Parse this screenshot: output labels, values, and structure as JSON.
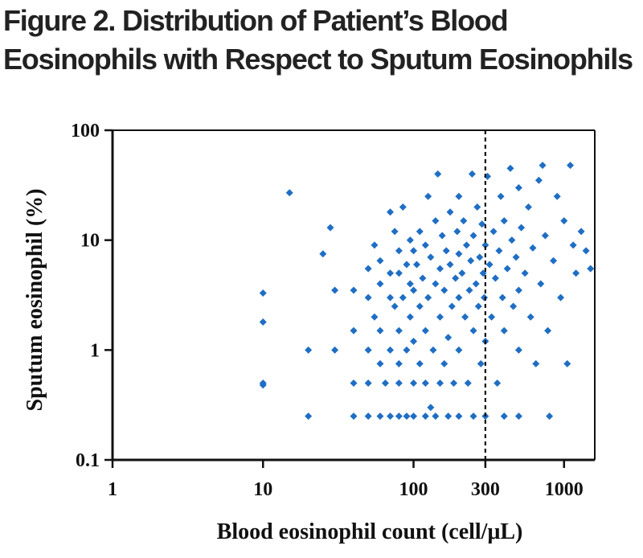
{
  "title": {
    "line1": "Figure 2. Distribution of Patient’s Blood",
    "line2": "Eosinophils with Respect to Sputum Eosinophils"
  },
  "colors": {
    "points": "#1f6ec4",
    "axes": "#111111",
    "reference_line": "#111111"
  },
  "chart_data": {
    "type": "scatter",
    "xlabel": "Blood eosinophil count (cell/μL)",
    "ylabel": "Sputum eosinophil (%)",
    "x_scale": "log",
    "y_scale": "log",
    "xlim": [
      1,
      1600
    ],
    "ylim": [
      0.1,
      100
    ],
    "x_ticks": [
      {
        "value": 1,
        "label": "1"
      },
      {
        "value": 10,
        "label": "10"
      },
      {
        "value": 100,
        "label": "100"
      },
      {
        "value": 300,
        "label": "300"
      },
      {
        "value": 1000,
        "label": "1000"
      }
    ],
    "y_ticks": [
      {
        "value": 0.1,
        "label": "0.1"
      },
      {
        "value": 1,
        "label": "1"
      },
      {
        "value": 10,
        "label": "10"
      },
      {
        "value": 100,
        "label": "100"
      }
    ],
    "grid": false,
    "reference_line": {
      "axis": "x",
      "value": 300,
      "style": "dashed"
    },
    "marker": "diamond",
    "points": [
      [
        10,
        3.3
      ],
      [
        10,
        1.8
      ],
      [
        10,
        0.5
      ],
      [
        10,
        0.48
      ],
      [
        15,
        27
      ],
      [
        20,
        1.0
      ],
      [
        20,
        0.25
      ],
      [
        25,
        7.5
      ],
      [
        28,
        13
      ],
      [
        30,
        1.0
      ],
      [
        30,
        3.5
      ],
      [
        40,
        0.5
      ],
      [
        40,
        0.25
      ],
      [
        40,
        3.5
      ],
      [
        40,
        1.5
      ],
      [
        50,
        5.5
      ],
      [
        50,
        3.0
      ],
      [
        50,
        1.0
      ],
      [
        50,
        0.5
      ],
      [
        50,
        0.25
      ],
      [
        55,
        9.0
      ],
      [
        55,
        2.0
      ],
      [
        60,
        6.5
      ],
      [
        60,
        4.0
      ],
      [
        60,
        1.5
      ],
      [
        60,
        0.75
      ],
      [
        60,
        0.25
      ],
      [
        65,
        0.5
      ],
      [
        70,
        18
      ],
      [
        70,
        5.0
      ],
      [
        70,
        3.0
      ],
      [
        70,
        1.0
      ],
      [
        70,
        0.25
      ],
      [
        75,
        12
      ],
      [
        75,
        2.5
      ],
      [
        80,
        8.0
      ],
      [
        80,
        5.0
      ],
      [
        80,
        1.5
      ],
      [
        80,
        0.75
      ],
      [
        80,
        0.5
      ],
      [
        80,
        0.25
      ],
      [
        85,
        20
      ],
      [
        85,
        3.0
      ],
      [
        90,
        6.0
      ],
      [
        90,
        1.0
      ],
      [
        90,
        0.25
      ],
      [
        95,
        10
      ],
      [
        95,
        4.0
      ],
      [
        95,
        2.0
      ],
      [
        100,
        8.0
      ],
      [
        100,
        3.5
      ],
      [
        100,
        1.2
      ],
      [
        100,
        0.5
      ],
      [
        100,
        0.25
      ],
      [
        105,
        6.0
      ],
      [
        110,
        12
      ],
      [
        110,
        2.5
      ],
      [
        110,
        0.75
      ],
      [
        115,
        4.5
      ],
      [
        120,
        9.0
      ],
      [
        120,
        1.5
      ],
      [
        120,
        0.5
      ],
      [
        120,
        0.25
      ],
      [
        125,
        25
      ],
      [
        125,
        3.0
      ],
      [
        130,
        7.0
      ],
      [
        130,
        0.3
      ],
      [
        135,
        1.0
      ],
      [
        140,
        15
      ],
      [
        140,
        4.0
      ],
      [
        140,
        0.25
      ],
      [
        145,
        40
      ],
      [
        150,
        5.5
      ],
      [
        150,
        2.0
      ],
      [
        150,
        0.5
      ],
      [
        155,
        11
      ],
      [
        160,
        3.5
      ],
      [
        160,
        0.75
      ],
      [
        165,
        8.0
      ],
      [
        170,
        1.3
      ],
      [
        170,
        0.25
      ],
      [
        175,
        18
      ],
      [
        175,
        6.0
      ],
      [
        180,
        2.5
      ],
      [
        185,
        0.5
      ],
      [
        190,
        4.5
      ],
      [
        195,
        12
      ],
      [
        200,
        25
      ],
      [
        200,
        7.5
      ],
      [
        200,
        3.0
      ],
      [
        200,
        1.0
      ],
      [
        200,
        0.25
      ],
      [
        210,
        5.0
      ],
      [
        215,
        15
      ],
      [
        220,
        2.0
      ],
      [
        225,
        9.0
      ],
      [
        230,
        0.5
      ],
      [
        235,
        3.5
      ],
      [
        240,
        6.5
      ],
      [
        245,
        40
      ],
      [
        250,
        11
      ],
      [
        250,
        1.5
      ],
      [
        250,
        0.25
      ],
      [
        260,
        4.0
      ],
      [
        265,
        20
      ],
      [
        270,
        2.5
      ],
      [
        275,
        7.0
      ],
      [
        280,
        0.75
      ],
      [
        285,
        14
      ],
      [
        290,
        5.0
      ],
      [
        295,
        3.0
      ],
      [
        300,
        9.0
      ],
      [
        300,
        1.2
      ],
      [
        300,
        0.25
      ],
      [
        310,
        38
      ],
      [
        320,
        6.0
      ],
      [
        330,
        2.0
      ],
      [
        340,
        12
      ],
      [
        350,
        4.5
      ],
      [
        360,
        0.5
      ],
      [
        370,
        8.0
      ],
      [
        380,
        25
      ],
      [
        390,
        3.0
      ],
      [
        400,
        15
      ],
      [
        400,
        1.5
      ],
      [
        400,
        0.25
      ],
      [
        420,
        5.5
      ],
      [
        440,
        45
      ],
      [
        450,
        10
      ],
      [
        460,
        2.5
      ],
      [
        480,
        7.0
      ],
      [
        500,
        30
      ],
      [
        500,
        3.5
      ],
      [
        500,
        1.0
      ],
      [
        500,
        0.25
      ],
      [
        520,
        13
      ],
      [
        550,
        5.0
      ],
      [
        580,
        20
      ],
      [
        600,
        2.0
      ],
      [
        620,
        8.5
      ],
      [
        650,
        0.75
      ],
      [
        680,
        35
      ],
      [
        700,
        4.0
      ],
      [
        720,
        48
      ],
      [
        750,
        11
      ],
      [
        780,
        1.5
      ],
      [
        800,
        0.25
      ],
      [
        850,
        6.5
      ],
      [
        900,
        25
      ],
      [
        950,
        3.0
      ],
      [
        1000,
        15
      ],
      [
        1050,
        0.75
      ],
      [
        1100,
        48
      ],
      [
        1150,
        9.0
      ],
      [
        1200,
        5.0
      ],
      [
        1300,
        12
      ],
      [
        1400,
        8.0
      ],
      [
        1500,
        5.5
      ]
    ]
  }
}
